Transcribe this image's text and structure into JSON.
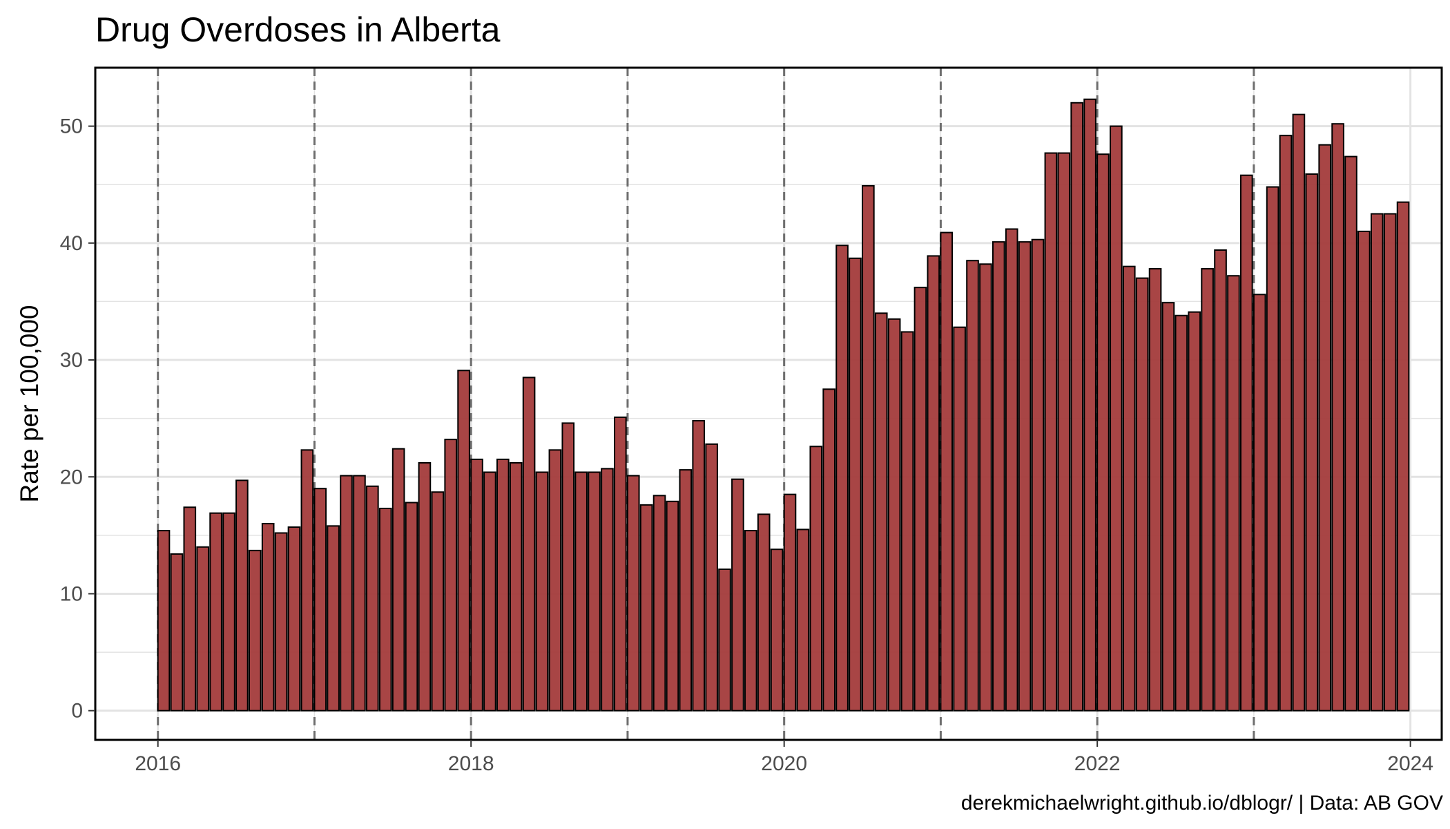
{
  "chart_data": {
    "type": "bar",
    "title": "Drug Overdoses in Alberta",
    "xlabel": "",
    "ylabel": "Rate per 100,000",
    "caption": "derekmichaelwright.github.io/dblogr/ | Data: AB GOV",
    "x_start": "2016-01",
    "x_frequency": "monthly",
    "xlim": [
      2015.6,
      2024.2
    ],
    "ylim": [
      -2.5,
      55
    ],
    "x_ticks": [
      2016,
      2018,
      2020,
      2022,
      2024
    ],
    "x_tick_labels": [
      "2016",
      "2018",
      "2020",
      "2022",
      "2024"
    ],
    "y_ticks": [
      0,
      10,
      20,
      30,
      40,
      50
    ],
    "y_tick_labels": [
      "0",
      "10",
      "20",
      "30",
      "40",
      "50"
    ],
    "year_marker_lines": [
      2016,
      2017,
      2018,
      2019,
      2020,
      2021,
      2022,
      2023
    ],
    "grid": true,
    "legend": "none",
    "colors": {
      "bar_fill": "#a33b3b",
      "bar_stroke": "#000000",
      "year_marker": "#6e6e6e",
      "grid": "#e3e3e3",
      "panel_border": "#000000"
    },
    "values": [
      15.4,
      13.4,
      17.4,
      14.0,
      16.9,
      16.9,
      19.7,
      13.7,
      16.0,
      15.2,
      15.7,
      22.3,
      19.0,
      15.8,
      20.1,
      20.1,
      19.2,
      17.3,
      22.4,
      17.8,
      21.2,
      18.7,
      23.2,
      29.1,
      21.5,
      20.4,
      21.5,
      21.2,
      28.5,
      20.4,
      22.3,
      24.6,
      20.4,
      20.4,
      20.7,
      25.1,
      20.1,
      17.6,
      18.4,
      17.9,
      20.6,
      24.8,
      22.8,
      12.1,
      19.8,
      15.4,
      16.8,
      13.8,
      18.5,
      15.5,
      22.6,
      27.5,
      39.8,
      38.7,
      44.9,
      34.0,
      33.5,
      32.4,
      36.2,
      38.9,
      40.9,
      32.8,
      38.5,
      38.2,
      40.1,
      41.2,
      40.1,
      40.3,
      47.7,
      47.7,
      52.0,
      52.3,
      47.6,
      50.0,
      38.0,
      37.0,
      37.8,
      34.9,
      33.8,
      34.1,
      37.8,
      39.4,
      37.2,
      45.8,
      35.6,
      44.8,
      49.2,
      51.0,
      45.9,
      48.4,
      50.2,
      47.4,
      41.0,
      42.5,
      42.5,
      43.5
    ]
  }
}
